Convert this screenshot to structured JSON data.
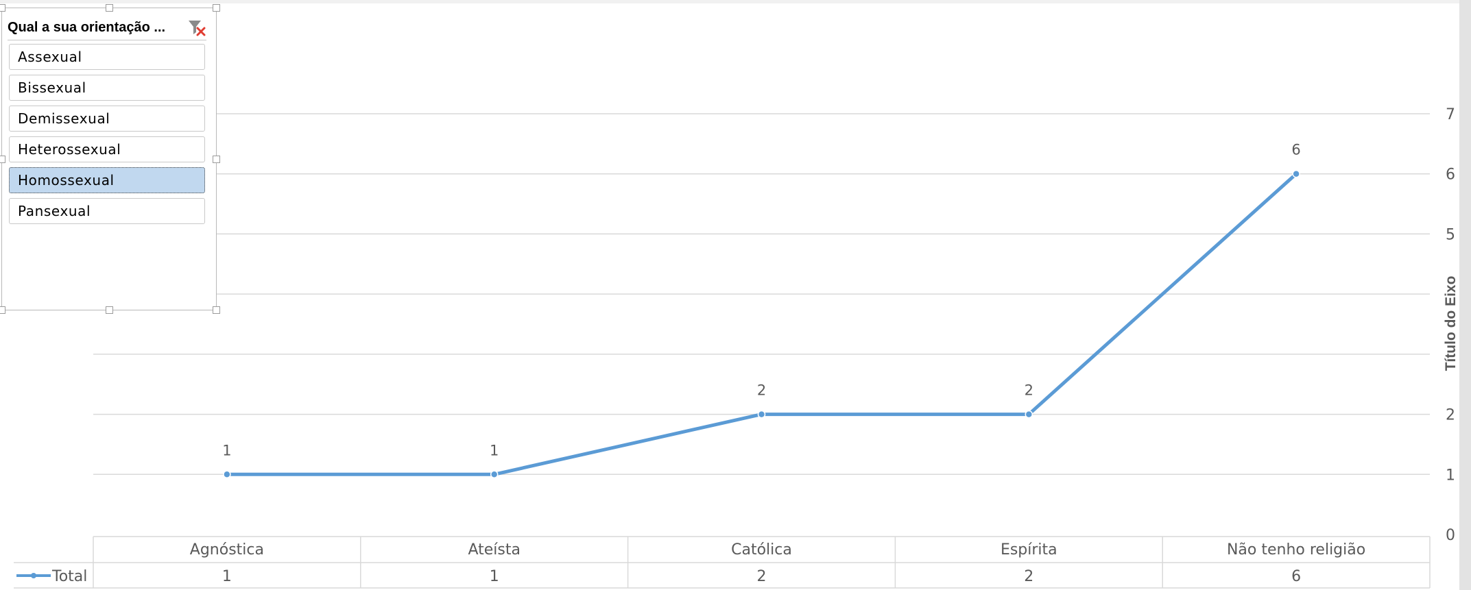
{
  "slicer": {
    "title": "Qual a sua orientação ...",
    "filter_icon": "clear-filter-icon",
    "items": [
      {
        "label": "Assexual",
        "selected": false
      },
      {
        "label": "Bissexual",
        "selected": false
      },
      {
        "label": "Demissexual",
        "selected": false
      },
      {
        "label": "Heterossexual",
        "selected": false
      },
      {
        "label": "Homossexual",
        "selected": true
      },
      {
        "label": "Pansexual",
        "selected": false
      }
    ]
  },
  "colors": {
    "series": "#5b9bd5",
    "selected_item": "#c1d8ef",
    "grid": "#d9d9d9"
  },
  "chart_data": {
    "type": "line",
    "categories": [
      "Agnóstica",
      "Ateísta",
      "Católica",
      "Espírita",
      "Não tenho religião"
    ],
    "series": [
      {
        "name": "Total",
        "values": [
          1,
          1,
          2,
          2,
          6
        ]
      }
    ],
    "y_axis": {
      "title": "Título do Eixo",
      "position": "right",
      "ylim": [
        0,
        7
      ],
      "ticks": [
        0,
        1,
        2,
        5,
        6,
        7
      ]
    },
    "data_labels": true,
    "data_table": true,
    "legend": "data-table-left",
    "grid": true
  }
}
